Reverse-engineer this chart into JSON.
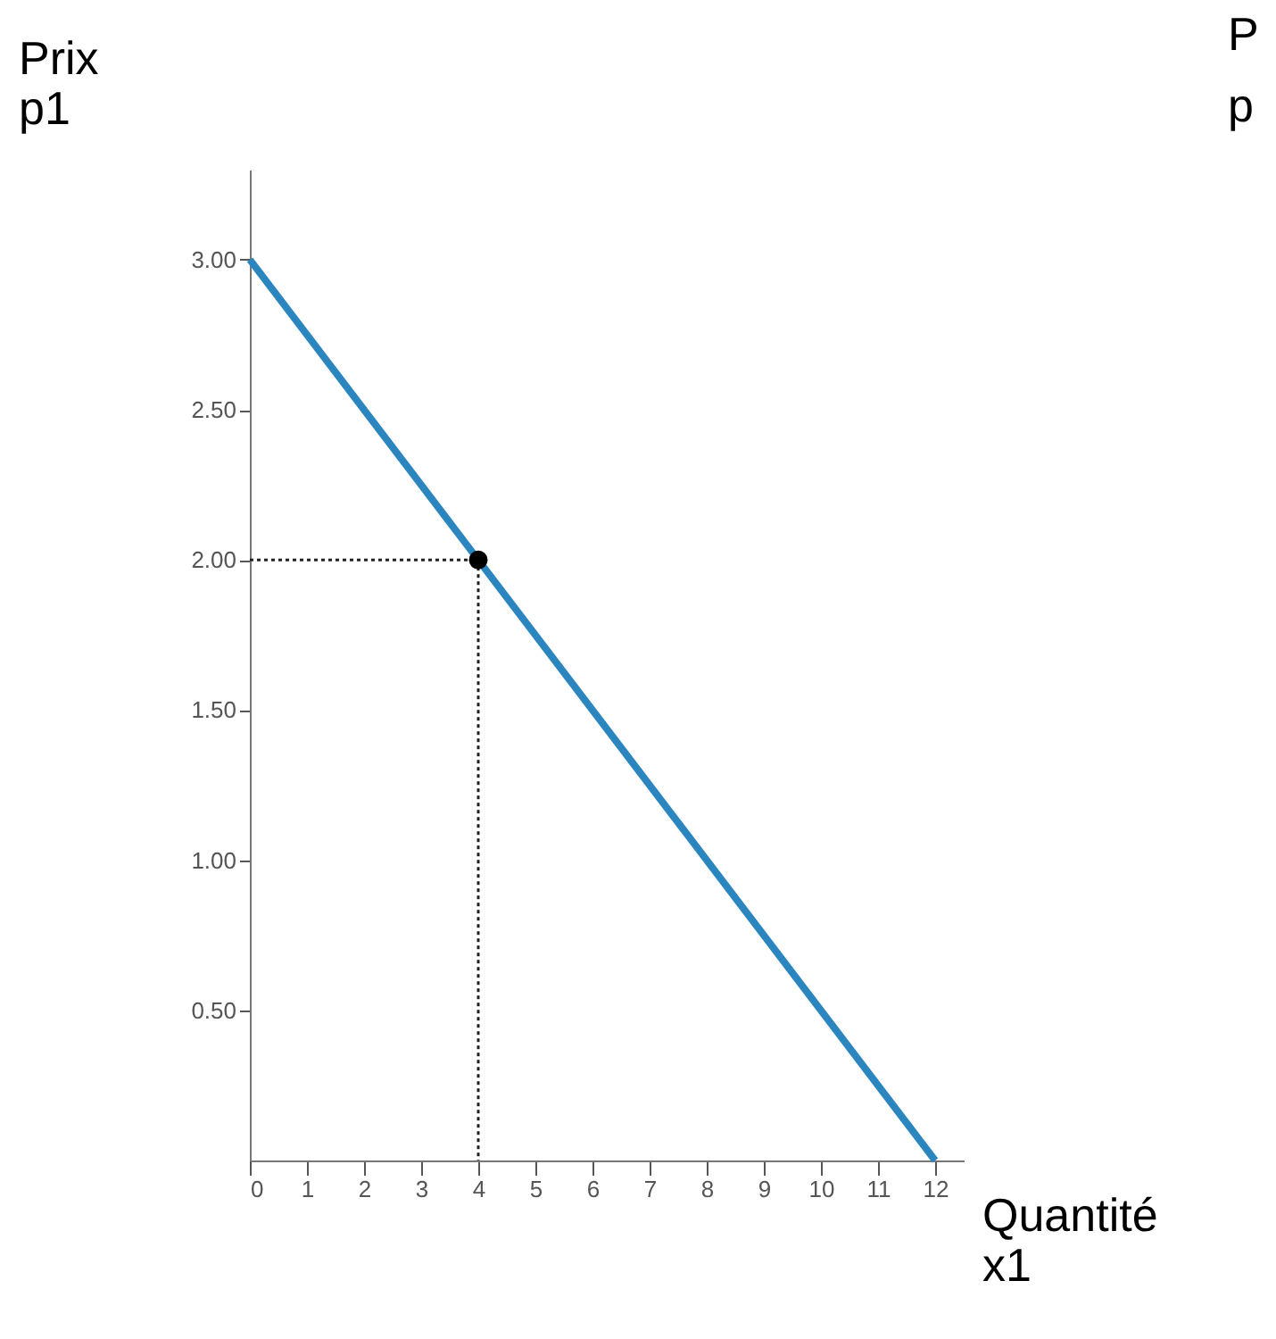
{
  "chart_data": {
    "type": "line",
    "xlabel": "Quantité x1",
    "ylabel": "Prix p1",
    "annotations": [
      "P",
      "p"
    ],
    "xlim": [
      0,
      12.5
    ],
    "ylim": [
      0,
      3.3
    ],
    "xticks": [
      0,
      1,
      2,
      3,
      4,
      5,
      6,
      7,
      8,
      9,
      10,
      11,
      12
    ],
    "yticks": [
      {
        "value": 0.5,
        "label": "0.50"
      },
      {
        "value": 1,
        "label": "1.00"
      },
      {
        "value": 1.5,
        "label": "1.50"
      },
      {
        "value": 2,
        "label": "2.00"
      },
      {
        "value": 2.5,
        "label": "2.50"
      },
      {
        "value": 3,
        "label": "3.00"
      }
    ],
    "grid": false,
    "series": [
      {
        "type": "line",
        "color": "#2b86c0",
        "x": [
          0,
          12
        ],
        "values": [
          3,
          0
        ],
        "line_style": "solid"
      },
      {
        "type": "line",
        "color": "#222222",
        "x": [
          0,
          4
        ],
        "values": [
          2,
          2
        ],
        "line_style": "dotted"
      },
      {
        "type": "line",
        "color": "#222222",
        "x": [
          4,
          4
        ],
        "values": [
          2,
          0
        ],
        "line_style": "dotted"
      },
      {
        "type": "scatter",
        "color": "#000000",
        "x": [
          4
        ],
        "values": [
          2
        ],
        "marker": "circle"
      }
    ]
  }
}
